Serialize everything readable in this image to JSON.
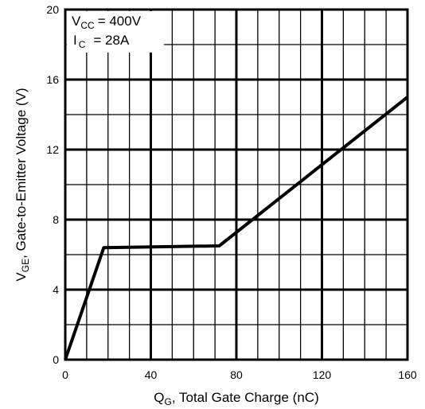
{
  "chart_data": {
    "type": "line",
    "xlabel_main": "Q",
    "xlabel_sub": "G",
    "xlabel_rest": ", Total Gate Charge (nC)",
    "ylabel_main": "V",
    "ylabel_sub": "GE",
    "ylabel_rest": ", Gate-to-Emitter Voltage (V)",
    "xlim": [
      0,
      160
    ],
    "ylim": [
      0,
      20
    ],
    "x_ticks": [
      "0",
      "40",
      "80",
      "120",
      "160"
    ],
    "y_ticks": [
      "0",
      "4",
      "8",
      "12",
      "16",
      "20"
    ],
    "grid": true,
    "annotation": {
      "vcc_symbol": "V",
      "vcc_sub": "CC",
      "vcc_value": "= 400V",
      "ic_symbol": "I",
      "ic_sub": "C",
      "ic_value": "= 28A"
    },
    "series": [
      {
        "x": [
          0,
          18,
          72,
          160
        ],
        "y": [
          0,
          6.4,
          6.5,
          15.0
        ]
      }
    ],
    "line_color": "#000000"
  }
}
